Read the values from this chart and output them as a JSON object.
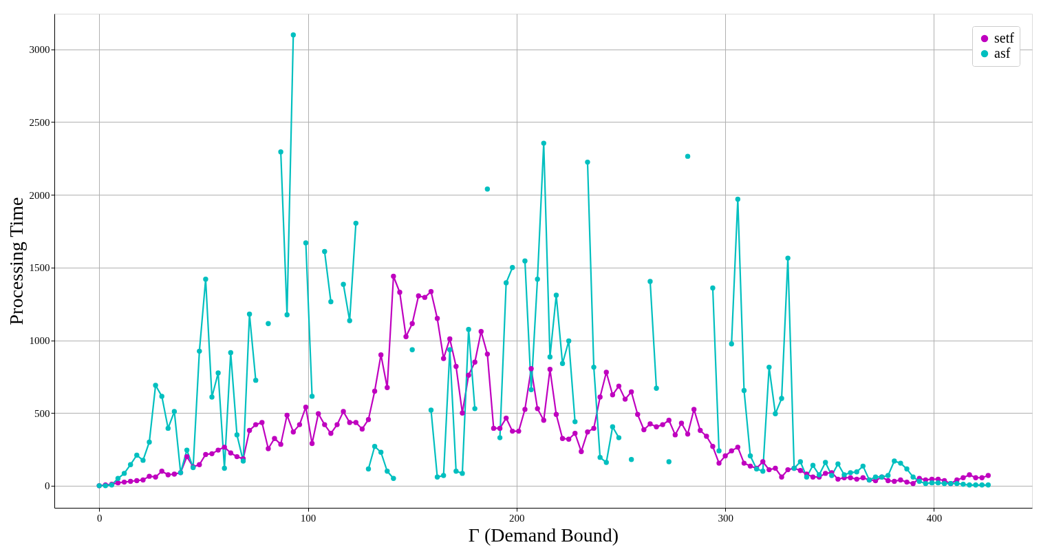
{
  "chart_data": {
    "type": "line",
    "xlabel": "Γ (Demand Bound)",
    "ylabel": "Processing Time",
    "x": [
      0,
      3,
      6,
      9,
      12,
      15,
      18,
      21,
      24,
      27,
      30,
      33,
      36,
      39,
      42,
      45,
      48,
      51,
      54,
      57,
      60,
      63,
      66,
      69,
      72,
      75,
      78,
      81,
      84,
      87,
      90,
      93,
      96,
      99,
      102,
      105,
      108,
      111,
      114,
      117,
      120,
      123,
      126,
      129,
      132,
      135,
      138,
      141,
      144,
      147,
      150,
      153,
      156,
      159,
      162,
      165,
      168,
      171,
      174,
      177,
      180,
      183,
      186,
      189,
      192,
      195,
      198,
      201,
      204,
      207,
      210,
      213,
      216,
      219,
      222,
      225,
      228,
      231,
      234,
      237,
      240,
      243,
      246,
      249,
      252,
      255,
      258,
      261,
      264,
      267,
      270,
      273,
      276,
      279,
      282,
      285,
      288,
      291,
      294,
      297,
      300,
      303,
      306,
      309,
      312,
      315,
      318,
      321,
      324,
      327,
      330,
      333,
      336,
      339,
      342,
      345,
      348,
      351,
      354,
      357,
      360,
      363,
      366,
      369,
      372,
      375,
      378,
      381,
      384,
      387,
      390,
      393,
      396,
      399,
      402,
      405,
      408,
      411,
      414,
      417,
      420,
      423,
      426
    ],
    "series": [
      {
        "name": "setf",
        "color": "#bf00bf",
        "values": [
          0,
          5,
          10,
          20,
          25,
          30,
          35,
          40,
          65,
          60,
          100,
          75,
          80,
          90,
          200,
          130,
          145,
          215,
          220,
          245,
          265,
          225,
          200,
          185,
          380,
          420,
          435,
          255,
          325,
          285,
          485,
          370,
          420,
          540,
          290,
          495,
          420,
          360,
          420,
          510,
          435,
          435,
          390,
          455,
          650,
          900,
          675,
          1440,
          1330,
          1025,
          1115,
          1305,
          1295,
          1335,
          1150,
          875,
          1010,
          820,
          500,
          760,
          850,
          1060,
          905,
          395,
          395,
          465,
          375,
          375,
          525,
          805,
          530,
          450,
          800,
          490,
          325,
          320,
          360,
          235,
          370,
          395,
          610,
          780,
          625,
          685,
          595,
          645,
          490,
          385,
          425,
          405,
          420,
          450,
          350,
          430,
          355,
          525,
          380,
          340,
          270,
          155,
          205,
          240,
          265,
          155,
          135,
          120,
          165,
          110,
          120,
          60,
          110,
          120,
          105,
          80,
          60,
          60,
          85,
          90,
          45,
          55,
          55,
          45,
          55,
          40,
          35,
          60,
          35,
          30,
          40,
          25,
          15,
          50,
          40,
          45,
          45,
          35,
          15,
          40,
          55,
          75,
          55,
          55,
          70
        ]
      },
      {
        "name": "asf",
        "color": "#00bfbf",
        "values": [
          0,
          0,
          5,
          50,
          85,
          145,
          210,
          175,
          300,
          690,
          615,
          395,
          510,
          90,
          245,
          125,
          925,
          1420,
          610,
          775,
          120,
          915,
          350,
          170,
          1180,
          725,
          null,
          1115,
          null,
          2295,
          1175,
          3100,
          null,
          1670,
          615,
          null,
          1610,
          1265,
          null,
          1385,
          1135,
          1805,
          null,
          115,
          270,
          230,
          100,
          50,
          null,
          null,
          935,
          null,
          null,
          520,
          60,
          70,
          935,
          100,
          85,
          1075,
          530,
          null,
          2040,
          null,
          330,
          1395,
          1500,
          null,
          1545,
          660,
          1420,
          2355,
          885,
          1310,
          840,
          995,
          440,
          null,
          2225,
          815,
          195,
          160,
          405,
          330,
          null,
          180,
          null,
          null,
          1405,
          670,
          null,
          165,
          null,
          null,
          2265,
          null,
          null,
          null,
          1360,
          240,
          null,
          975,
          1970,
          655,
          205,
          115,
          100,
          815,
          495,
          600,
          1565,
          120,
          165,
          60,
          140,
          75,
          160,
          70,
          150,
          75,
          90,
          95,
          135,
          40,
          60,
          60,
          70,
          170,
          155,
          115,
          60,
          30,
          15,
          20,
          20,
          15,
          15,
          15,
          10,
          5,
          5,
          5,
          5
        ]
      }
    ],
    "xlim": [
      -21.5,
      447
    ],
    "xticks": [
      0,
      100,
      200,
      300,
      400
    ],
    "ylim": [
      -152,
      3245
    ],
    "yticks": [
      0,
      500,
      1000,
      1500,
      2000,
      2500,
      3000
    ],
    "grid": true,
    "legend": "top right",
    "marker": "circle",
    "line_style": "solid"
  }
}
